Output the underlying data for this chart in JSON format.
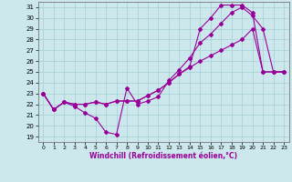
{
  "xlabel": "Windchill (Refroidissement éolien,°C)",
  "xlim": [
    -0.5,
    23.5
  ],
  "ylim": [
    18.5,
    31.5
  ],
  "yticks": [
    19,
    20,
    21,
    22,
    23,
    24,
    25,
    26,
    27,
    28,
    29,
    30,
    31
  ],
  "xticks": [
    0,
    1,
    2,
    3,
    4,
    5,
    6,
    7,
    8,
    9,
    10,
    11,
    12,
    13,
    14,
    15,
    16,
    17,
    18,
    19,
    20,
    21,
    22,
    23
  ],
  "background_color": "#cce8ec",
  "grid_color": "#aad4d8",
  "line_color": "#990099",
  "series": [
    [
      23.0,
      21.5,
      22.2,
      21.8,
      21.2,
      20.7,
      19.4,
      19.2,
      23.5,
      22.0,
      22.3,
      22.7,
      24.2,
      25.2,
      26.3,
      27.7,
      28.5,
      29.5,
      30.5,
      31.0,
      30.2,
      29.0,
      25.0,
      25.0
    ],
    [
      23.0,
      21.5,
      22.2,
      22.0,
      22.0,
      22.2,
      22.0,
      22.3,
      22.3,
      22.3,
      22.8,
      23.3,
      24.0,
      24.8,
      25.4,
      26.0,
      26.5,
      27.0,
      27.5,
      28.0,
      29.0,
      25.0,
      25.0,
      25.0
    ],
    [
      23.0,
      21.5,
      22.2,
      22.0,
      22.0,
      22.2,
      22.0,
      22.3,
      22.3,
      22.3,
      22.8,
      23.3,
      24.0,
      24.8,
      25.5,
      29.0,
      30.0,
      31.2,
      31.2,
      31.2,
      30.5,
      25.0,
      25.0,
      25.0
    ]
  ]
}
